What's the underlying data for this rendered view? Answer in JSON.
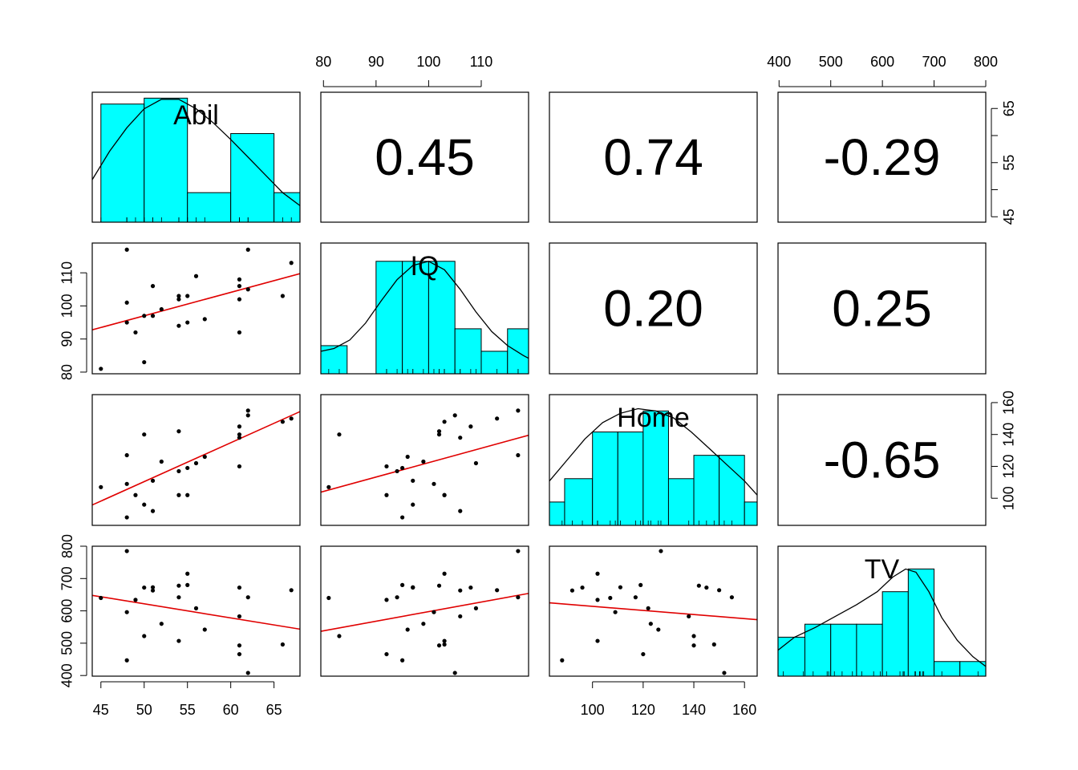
{
  "chart_data": {
    "type": "scatter-matrix",
    "title": "",
    "variables": [
      "Abil",
      "IQ",
      "Home",
      "TV"
    ],
    "colors": {
      "hist_fill": "#00FFFF",
      "fit_line": "#E00000",
      "points": "#000000",
      "frame": "#000000"
    },
    "axes": {
      "Abil": {
        "range": [
          44,
          68
        ],
        "ticks": [
          45,
          50,
          55,
          60,
          65
        ]
      },
      "IQ": {
        "range": [
          79.5,
          119
        ],
        "ticks": [
          80,
          90,
          100,
          110
        ]
      },
      "Home": {
        "range": [
          83,
          165
        ],
        "ticks": [
          100,
          120,
          140,
          160
        ]
      },
      "TV": {
        "range": [
          398,
          800
        ],
        "ticks": [
          400,
          500,
          600,
          700,
          800
        ]
      }
    },
    "correlations": [
      {
        "row": "Abil",
        "col": "IQ",
        "value": "0.45"
      },
      {
        "row": "Abil",
        "col": "Home",
        "value": "0.74"
      },
      {
        "row": "Abil",
        "col": "TV",
        "value": "-0.29"
      },
      {
        "row": "IQ",
        "col": "Home",
        "value": "0.20"
      },
      {
        "row": "IQ",
        "col": "TV",
        "value": "0.25"
      },
      {
        "row": "Home",
        "col": "TV",
        "value": "-0.65"
      }
    ],
    "histograms": {
      "Abil": {
        "bins": [
          [
            45,
            50,
            2
          ],
          [
            50,
            55,
            2.1
          ],
          [
            55,
            60,
            0.5
          ],
          [
            60,
            65,
            1.5
          ],
          [
            65,
            70,
            0.5
          ]
        ],
        "max": 2.2,
        "density": [
          [
            44,
            0.72
          ],
          [
            46,
            1.2
          ],
          [
            48,
            1.6
          ],
          [
            50,
            1.92
          ],
          [
            52,
            2.08
          ],
          [
            54,
            2.08
          ],
          [
            56,
            1.92
          ],
          [
            58,
            1.68
          ],
          [
            60,
            1.4
          ],
          [
            62,
            1.1
          ],
          [
            64,
            0.8
          ],
          [
            66,
            0.5
          ],
          [
            68,
            0.28
          ]
        ]
      },
      "IQ": {
        "bins": [
          [
            79.5,
            84.5,
            2
          ],
          [
            90,
            95,
            8
          ],
          [
            95,
            100,
            8
          ],
          [
            100,
            105,
            8
          ],
          [
            105,
            110,
            3.2
          ],
          [
            110,
            115,
            1.6
          ],
          [
            115,
            120,
            3.2
          ]
        ],
        "max": 9.3,
        "density": [
          [
            79.5,
            1.6
          ],
          [
            82,
            1.8
          ],
          [
            85,
            2.4
          ],
          [
            88,
            3.6
          ],
          [
            91,
            5.2
          ],
          [
            94,
            6.7
          ],
          [
            97,
            7.7
          ],
          [
            100,
            8.0
          ],
          [
            103,
            7.4
          ],
          [
            106,
            6.0
          ],
          [
            109,
            4.4
          ],
          [
            112,
            3.0
          ],
          [
            115,
            2.0
          ],
          [
            118,
            1.3
          ],
          [
            119,
            1.1
          ]
        ]
      },
      "Home": {
        "bins": [
          [
            83,
            89,
            1
          ],
          [
            89,
            100,
            2
          ],
          [
            100,
            110,
            4
          ],
          [
            110,
            120,
            4
          ],
          [
            120,
            130,
            4.9
          ],
          [
            130,
            140,
            2
          ],
          [
            140,
            150,
            3
          ],
          [
            150,
            160,
            3
          ],
          [
            160,
            165,
            1
          ]
        ],
        "max": 5.6,
        "density": [
          [
            83,
            1.9
          ],
          [
            90,
            2.8
          ],
          [
            97,
            3.7
          ],
          [
            104,
            4.4
          ],
          [
            111,
            4.8
          ],
          [
            118,
            5.0
          ],
          [
            125,
            4.9
          ],
          [
            132,
            4.6
          ],
          [
            139,
            4.0
          ],
          [
            146,
            3.3
          ],
          [
            153,
            2.6
          ],
          [
            160,
            1.9
          ],
          [
            165,
            1.3
          ]
        ]
      },
      "TV": {
        "bins": [
          [
            398,
            450,
            1.2
          ],
          [
            450,
            500,
            1.6
          ],
          [
            500,
            550,
            1.6
          ],
          [
            550,
            600,
            1.6
          ],
          [
            600,
            650,
            2.6
          ],
          [
            650,
            700,
            3.3
          ],
          [
            700,
            750,
            0.45
          ],
          [
            750,
            800,
            0.45
          ]
        ],
        "max": 4.0,
        "density": [
          [
            398,
            0.8
          ],
          [
            430,
            1.2
          ],
          [
            470,
            1.5
          ],
          [
            510,
            1.85
          ],
          [
            550,
            2.2
          ],
          [
            590,
            2.6
          ],
          [
            620,
            3.05
          ],
          [
            645,
            3.3
          ],
          [
            665,
            3.2
          ],
          [
            690,
            2.6
          ],
          [
            715,
            1.8
          ],
          [
            745,
            1.1
          ],
          [
            775,
            0.6
          ],
          [
            800,
            0.3
          ]
        ]
      }
    },
    "observations": [
      {
        "Abil": 45,
        "IQ": 81,
        "Home": 107,
        "TV": 640
      },
      {
        "Abil": 48,
        "IQ": 117,
        "Home": 127,
        "TV": 785
      },
      {
        "Abil": 48,
        "IQ": 101,
        "Home": 109,
        "TV": 596
      },
      {
        "Abil": 48,
        "IQ": 95,
        "Home": 88,
        "TV": 447
      },
      {
        "Abil": 49,
        "IQ": 92,
        "Home": 102,
        "TV": 634
      },
      {
        "Abil": 50,
        "IQ": 83,
        "Home": 140,
        "TV": 522
      },
      {
        "Abil": 50,
        "IQ": 97,
        "Home": 96,
        "TV": 672
      },
      {
        "Abil": 51,
        "IQ": 97,
        "Home": 111,
        "TV": 673
      },
      {
        "Abil": 51,
        "IQ": 106,
        "Home": 92,
        "TV": 663
      },
      {
        "Abil": 52,
        "IQ": 99,
        "Home": 123,
        "TV": 560
      },
      {
        "Abil": 54,
        "IQ": 103,
        "Home": 102,
        "TV": 507
      },
      {
        "Abil": 54,
        "IQ": 102,
        "Home": 142,
        "TV": 678
      },
      {
        "Abil": 54,
        "IQ": 94,
        "Home": 117,
        "TV": 642
      },
      {
        "Abil": 55,
        "IQ": 103,
        "Home": 102,
        "TV": 715
      },
      {
        "Abil": 55,
        "IQ": 95,
        "Home": 119,
        "TV": 680
      },
      {
        "Abil": 56,
        "IQ": 109,
        "Home": 122,
        "TV": 608
      },
      {
        "Abil": 57,
        "IQ": 96,
        "Home": 126,
        "TV": 542
      },
      {
        "Abil": 61,
        "IQ": 108,
        "Home": 145,
        "TV": 672
      },
      {
        "Abil": 61,
        "IQ": 106,
        "Home": 138,
        "TV": 583
      },
      {
        "Abil": 61,
        "IQ": 102,
        "Home": 140,
        "TV": 493
      },
      {
        "Abil": 61,
        "IQ": 92,
        "Home": 120,
        "TV": 466
      },
      {
        "Abil": 62,
        "IQ": 117,
        "Home": 155,
        "TV": 642
      },
      {
        "Abil": 62,
        "IQ": 105,
        "Home": 152,
        "TV": 408
      },
      {
        "Abil": 66,
        "IQ": 103,
        "Home": 148,
        "TV": 496
      },
      {
        "Abil": 67,
        "IQ": 113,
        "Home": 150,
        "TV": 664
      }
    ]
  }
}
